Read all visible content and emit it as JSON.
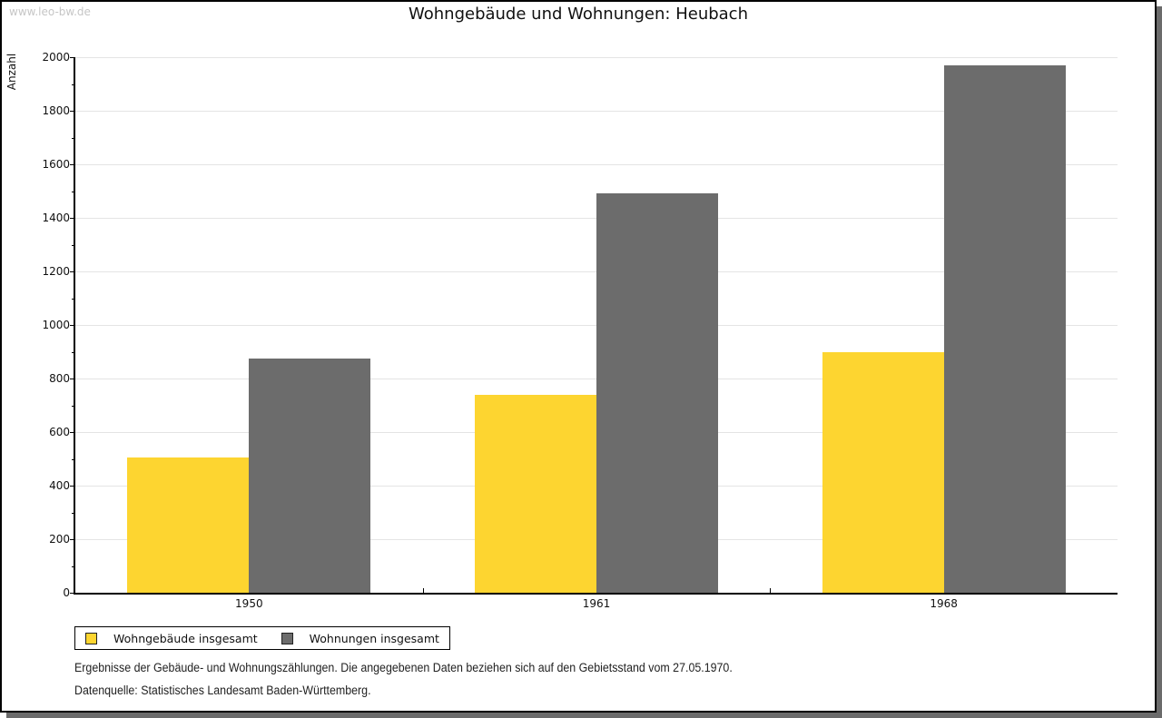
{
  "watermark": "www.leo-bw.de",
  "title": "Wohngebäude und Wohnungen: Heubach",
  "chart_data": {
    "type": "bar",
    "title": "Wohngebäude und Wohnungen: Heubach",
    "categories": [
      "1950",
      "1961",
      "1968"
    ],
    "series": [
      {
        "name": "Wohngebäude insgesamt",
        "color": "#fdd530",
        "values": [
          505,
          740,
          900
        ]
      },
      {
        "name": "Wohnungen insgesamt",
        "color": "#6c6c6c",
        "values": [
          875,
          1490,
          1970
        ]
      }
    ],
    "xlabel": "",
    "ylabel": "Anzahl",
    "ylim": [
      0,
      2000
    ],
    "ytick_major": 200,
    "ytick_minor": 100,
    "grid": "horizontal major gridlines",
    "legend_position": "bottom-left"
  },
  "footnotes": {
    "line1": "Ergebnisse der Gebäude- und Wohnungszählungen. Die angegebenen Daten beziehen sich auf den Gebietsstand vom 27.05.1970.",
    "line2": "Datenquelle: Statistisches Landesamt Baden-Württemberg."
  }
}
